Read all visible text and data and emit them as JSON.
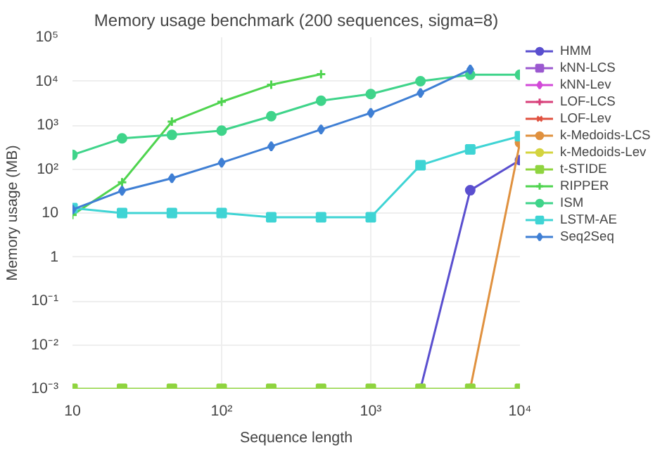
{
  "chart_data": {
    "type": "line",
    "title": "Memory usage benchmark (200 sequences, sigma=8)",
    "xlabel": "Sequence length",
    "ylabel": "Memory usage (MB)",
    "log": "xy",
    "grid": true,
    "legend": "right",
    "xlim": [
      10,
      10000
    ],
    "ylim": [
      0.001,
      100000
    ],
    "xticks": [
      10,
      {
        "value": 100,
        "label": "10²"
      },
      {
        "value": 1000,
        "label": "10³"
      },
      {
        "value": 10000,
        "label": "10⁴"
      }
    ],
    "yticks": [
      {
        "value": 0.001,
        "label": "10⁻³"
      },
      {
        "value": 0.01,
        "label": "10⁻²"
      },
      {
        "value": 0.1,
        "label": "10⁻¹"
      },
      1,
      10,
      {
        "value": 100,
        "label": "10²"
      },
      {
        "value": 1000,
        "label": "10³"
      },
      {
        "value": 10000,
        "label": "10⁴"
      },
      {
        "value": 100000,
        "label": "10⁵"
      }
    ],
    "x": [
      10,
      21.5,
      46.4,
      100,
      215,
      464,
      1000,
      2154,
      4642,
      10000
    ],
    "series": [
      {
        "name": "HMM",
        "color": "#5a4fcf",
        "marker": "circle",
        "values": [
          null,
          null,
          null,
          null,
          null,
          null,
          null,
          0.001,
          33,
          160
        ]
      },
      {
        "name": "kNN-LCS",
        "color": "#9b59d0",
        "marker": "square",
        "values": [
          null,
          null,
          null,
          null,
          null,
          null,
          null,
          null,
          null,
          null
        ]
      },
      {
        "name": "kNN-Lev",
        "color": "#d24ad8",
        "marker": "diamond",
        "values": [
          null,
          null,
          null,
          null,
          null,
          null,
          null,
          null,
          null,
          null
        ]
      },
      {
        "name": "LOF-LCS",
        "color": "#d8407a",
        "marker": "cross",
        "values": [
          null,
          null,
          null,
          null,
          null,
          null,
          null,
          null,
          null,
          null
        ]
      },
      {
        "name": "LOF-Lev",
        "color": "#e0513f",
        "marker": "x",
        "values": [
          null,
          null,
          null,
          null,
          null,
          null,
          null,
          null,
          null,
          null
        ]
      },
      {
        "name": "k-Medoids-LCS",
        "color": "#e0913f",
        "marker": "circle",
        "values": [
          null,
          null,
          null,
          null,
          null,
          null,
          null,
          null,
          0.001,
          400
        ]
      },
      {
        "name": "k-Medoids-Lev",
        "color": "#d4d43f",
        "marker": "circle",
        "values": [
          null,
          null,
          null,
          null,
          null,
          null,
          null,
          null,
          null,
          null
        ]
      },
      {
        "name": "t-STIDE",
        "color": "#8fd43f",
        "marker": "square",
        "values": [
          0.001,
          0.001,
          0.001,
          0.001,
          0.001,
          0.001,
          0.001,
          0.001,
          0.001,
          0.001
        ]
      },
      {
        "name": "RIPPER",
        "color": "#4fd44f",
        "marker": "cross",
        "values": [
          9,
          50,
          1200,
          3400,
          8300,
          14500,
          null,
          null,
          null,
          null
        ]
      },
      {
        "name": "ISM",
        "color": "#3fd48a",
        "marker": "circle",
        "values": [
          210,
          500,
          600,
          750,
          1600,
          3600,
          5100,
          10000,
          14000,
          14000
        ]
      },
      {
        "name": "LSTM-AE",
        "color": "#3fd4d4",
        "marker": "square",
        "values": [
          13,
          10,
          10,
          10,
          8,
          8,
          8,
          123,
          280,
          560
        ]
      },
      {
        "name": "Seq2Seq",
        "color": "#3f7fd4",
        "marker": "diamond",
        "values": [
          12,
          32,
          62,
          140,
          330,
          800,
          1900,
          5400,
          18500,
          null
        ]
      }
    ]
  }
}
